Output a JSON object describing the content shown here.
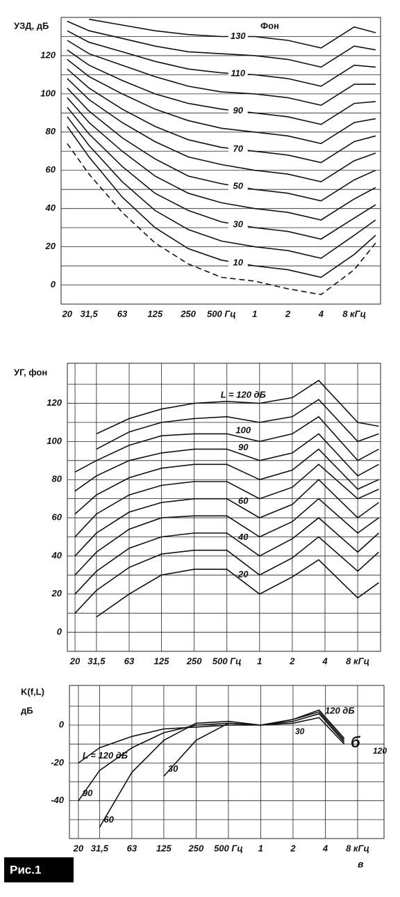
{
  "figure_label": "Рис.1",
  "chart_data": [
    {
      "type": "line",
      "title": "УЗД, дБ",
      "subtitle": "Фон",
      "log_x": true,
      "xgrid": false,
      "xlim": [
        17.6,
        13850
      ],
      "ylim": [
        -10,
        140
      ],
      "xticks": [
        20,
        {
          "value": 31.5,
          "label": "31,5"
        },
        63,
        125,
        250,
        {
          "value": 500,
          "label": "500 Гц"
        },
        {
          "value": 1000,
          "label": "1"
        },
        {
          "value": 2000,
          "label": "2"
        },
        {
          "value": 4000,
          "label": "4"
        },
        {
          "value": 8000,
          "label": "8 кГц"
        }
      ],
      "yticks": [
        0,
        20,
        40,
        60,
        80,
        100,
        120
      ],
      "y_minor_grid": [
        10,
        30,
        50,
        70,
        90,
        110,
        130
      ],
      "x": [
        20,
        31.5,
        63,
        125,
        250,
        500,
        1000,
        2000,
        4000,
        8000,
        12500
      ],
      "series": [
        {
          "color": "#111111",
          "dashed": true,
          "values": [
            74,
            58,
            38,
            22,
            11,
            4,
            2,
            -2,
            -5,
            8,
            22
          ]
        },
        {
          "name": "10",
          "color": "#111111",
          "values": [
            83,
            67,
            46,
            30,
            19,
            13,
            10,
            8,
            4,
            16,
            26
          ]
        },
        {
          "color": "#111111",
          "values": [
            88,
            73,
            54,
            39,
            29,
            23,
            20,
            18,
            14,
            26,
            34
          ]
        },
        {
          "name": "30",
          "color": "#111111",
          "values": [
            93,
            79,
            62,
            48,
            39,
            33,
            30,
            28,
            24,
            35,
            42
          ]
        },
        {
          "color": "#111111",
          "values": [
            98,
            85,
            70,
            57,
            48,
            43,
            40,
            38,
            34,
            45,
            51
          ]
        },
        {
          "name": "50",
          "color": "#111111",
          "values": [
            103,
            91,
            77,
            66,
            57,
            53,
            50,
            48,
            44,
            55,
            60
          ]
        },
        {
          "color": "#111111",
          "values": [
            108,
            97,
            85,
            75,
            67,
            63,
            60,
            58,
            54,
            65,
            69
          ]
        },
        {
          "name": "70",
          "color": "#111111",
          "values": [
            113,
            103,
            92,
            83,
            76,
            72,
            70,
            68,
            64,
            75,
            78
          ]
        },
        {
          "color": "#111111",
          "values": [
            118,
            109,
            100,
            92,
            86,
            82,
            80,
            78,
            74,
            85,
            87
          ]
        },
        {
          "name": "90",
          "color": "#111111",
          "values": [
            123,
            115,
            107,
            100,
            95,
            92,
            90,
            88,
            84,
            95,
            96
          ]
        },
        {
          "color": "#111111",
          "values": [
            128,
            121,
            115,
            109,
            104,
            101,
            100,
            98,
            94,
            105,
            105
          ]
        },
        {
          "name": "110",
          "color": "#111111",
          "values": [
            133,
            127,
            122,
            117,
            113,
            111,
            110,
            108,
            104,
            115,
            114
          ]
        },
        {
          "color": "#111111",
          "values": [
            138,
            133,
            129,
            125,
            122,
            121,
            120,
            118,
            114,
            125,
            123
          ]
        },
        {
          "name": "130",
          "color": "#111111",
          "values": [
            null,
            139,
            136,
            133,
            131,
            130,
            130,
            128,
            124,
            135,
            132
          ]
        }
      ]
    },
    {
      "type": "line",
      "title": "УГ, фон",
      "log_x": true,
      "xgrid": true,
      "xlim": [
        17.0,
        12990
      ],
      "ylim": [
        -10,
        141
      ],
      "xticks": [
        20,
        {
          "value": 31.5,
          "label": "31,5"
        },
        63,
        125,
        250,
        {
          "value": 500,
          "label": "500 Гц"
        },
        {
          "value": 1000,
          "label": "1"
        },
        {
          "value": 2000,
          "label": "2"
        },
        {
          "value": 4000,
          "label": "4"
        },
        {
          "value": 8000,
          "label": "8 кГц"
        }
      ],
      "yticks": [
        0,
        20,
        40,
        60,
        80,
        100,
        120
      ],
      "y_minor_grid": [
        10,
        30,
        50,
        70,
        90,
        110,
        130
      ],
      "x": [
        20,
        31.5,
        63,
        125,
        250,
        500,
        1000,
        2000,
        3500,
        8000,
        12500
      ],
      "series": [
        {
          "name": "L = 120 дБ",
          "color": "#111111",
          "values": [
            null,
            104,
            112,
            117,
            120,
            121,
            120,
            123,
            132,
            110,
            108
          ]
        },
        {
          "color": "#111111",
          "values": [
            null,
            96,
            105,
            110,
            112,
            113,
            110,
            113,
            122,
            100,
            104
          ]
        },
        {
          "name": "100",
          "color": "#111111",
          "values": [
            84,
            90,
            98,
            103,
            104,
            104,
            100,
            104,
            113,
            90,
            96
          ]
        },
        {
          "name": "90",
          "color": "#111111",
          "values": [
            74,
            82,
            90,
            94,
            96,
            96,
            90,
            94,
            104,
            82,
            88
          ]
        },
        {
          "color": "#111111",
          "values": [
            62,
            72,
            81,
            86,
            88,
            88,
            80,
            85,
            96,
            75,
            80
          ]
        },
        {
          "color": "#111111",
          "values": [
            50,
            62,
            72,
            77,
            79,
            79,
            70,
            76,
            88,
            70,
            75
          ]
        },
        {
          "name": "60",
          "color": "#111111",
          "values": [
            40,
            52,
            63,
            68,
            70,
            70,
            60,
            67,
            80,
            60,
            68
          ]
        },
        {
          "color": "#111111",
          "values": [
            30,
            42,
            54,
            60,
            61,
            61,
            50,
            58,
            70,
            52,
            60
          ]
        },
        {
          "name": "40",
          "color": "#111111",
          "values": [
            20,
            32,
            44,
            50,
            52,
            52,
            40,
            49,
            60,
            42,
            52
          ]
        },
        {
          "color": "#111111",
          "values": [
            10,
            22,
            34,
            41,
            43,
            43,
            30,
            39,
            50,
            32,
            42
          ]
        },
        {
          "name": "20",
          "color": "#111111",
          "values": [
            null,
            8,
            20,
            30,
            33,
            33,
            20,
            29,
            38,
            18,
            26
          ]
        }
      ]
    },
    {
      "type": "line",
      "title": "K(f,L)",
      "subtitle": "дБ",
      "log_x": true,
      "xgrid": true,
      "xlim": [
        16.5,
        14100
      ],
      "ylim": [
        -60,
        21
      ],
      "xticks": [
        20,
        {
          "value": 31.5,
          "label": "31,5"
        },
        63,
        125,
        250,
        {
          "value": 500,
          "label": "500 Гц"
        },
        {
          "value": 1000,
          "label": "1"
        },
        {
          "value": 2000,
          "label": "2"
        },
        {
          "value": 4000,
          "label": "4"
        },
        {
          "value": 8000,
          "label": "8 кГц"
        }
      ],
      "yticks": [
        -40,
        -20,
        0
      ],
      "y_minor_grid": [
        -50,
        -30,
        -10,
        10
      ],
      "x": [
        20,
        31.5,
        63,
        125,
        250,
        500,
        1000,
        2000,
        3500,
        6000
      ],
      "series": [
        {
          "name": "L = 120 дБ",
          "color": "#111111",
          "values": [
            -20,
            -12,
            -6,
            -2,
            -1,
            0,
            0,
            3,
            8,
            -7
          ]
        },
        {
          "name": "90",
          "color": "#111111",
          "values": [
            -40,
            -24,
            -12,
            -4,
            0,
            1,
            0,
            3,
            7,
            -8
          ]
        },
        {
          "name": "60",
          "color": "#111111",
          "values": [
            null,
            -54,
            -25,
            -8,
            1,
            2,
            0,
            2,
            6,
            -9
          ]
        },
        {
          "name": "30",
          "color": "#111111",
          "values": [
            null,
            null,
            null,
            -27,
            -8,
            1,
            0,
            1,
            4,
            -10
          ]
        }
      ],
      "annotations": [
        "120 дБ",
        "30",
        "120",
        "б",
        "в"
      ]
    }
  ]
}
